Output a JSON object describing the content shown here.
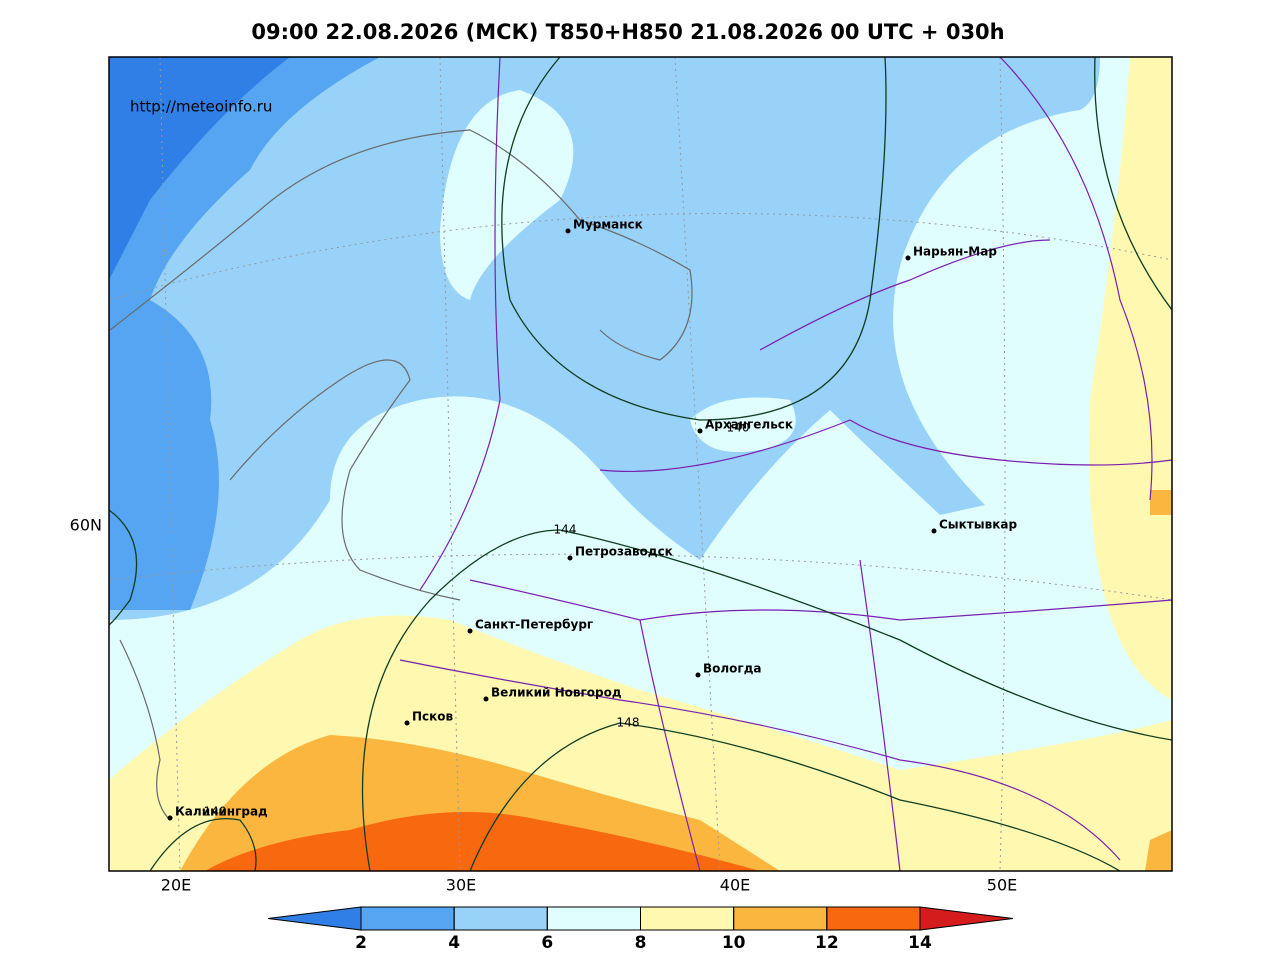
{
  "title": "09:00 22.08.2026 (МСК) T850+H850 21.08.2026 00 UTC + 030h",
  "source": "http://meteoinfo.ru",
  "cities": [
    "Мурманск",
    "Нарьян-Мар",
    "Архангельск",
    "Сыктывкар",
    "Петрозаводск",
    "Санкт-Петербург",
    "Вологда",
    "Великий Новгород",
    "Псков",
    "Калининград"
  ],
  "contour_labels": [
    140,
    144,
    148,
    140
  ],
  "x_labels": [
    "20E",
    "30E",
    "40E",
    "50E"
  ],
  "y_labels": [
    "60N"
  ],
  "colorbar": {
    "ticks": [
      2,
      4,
      6,
      8,
      10,
      12,
      14
    ],
    "colors": [
      "#2f7fe6",
      "#55a5f2",
      "#98d2f9",
      "#e0fefe",
      "#fff8b0",
      "#fbb640",
      "#f8680f",
      "#d51c1c"
    ]
  }
}
